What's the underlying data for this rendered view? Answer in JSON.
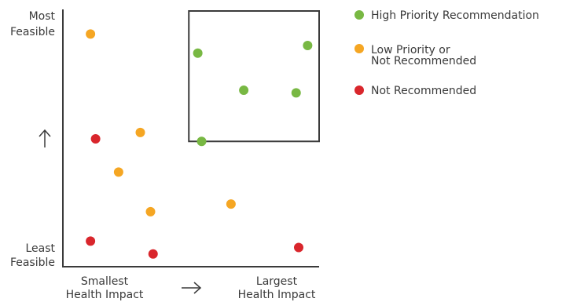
{
  "chart_data": {
    "type": "scatter",
    "title": "",
    "x_low_label": [
      "Smallest",
      "Health Impact"
    ],
    "x_high_label": [
      "Largest",
      "Health Impact"
    ],
    "y_high_label": [
      "Most",
      "Feasible"
    ],
    "y_low_label": [
      "Least",
      "Feasible"
    ],
    "xlim": [
      0,
      100
    ],
    "ylim": [
      0,
      100
    ],
    "highlight_box": {
      "x": [
        49,
        100
      ],
      "y": [
        49,
        100
      ]
    },
    "series": [
      {
        "name": "High Priority Recommendation",
        "color": "#78b843",
        "points": [
          {
            "x": 52.5,
            "y": 83.5
          },
          {
            "x": 95.5,
            "y": 86.5
          },
          {
            "x": 70.5,
            "y": 69
          },
          {
            "x": 91,
            "y": 68
          },
          {
            "x": 54,
            "y": 49
          }
        ]
      },
      {
        "name": "Low Priority or Not Recommended",
        "color": "#f5a623",
        "points": [
          {
            "x": 10.5,
            "y": 91
          },
          {
            "x": 30,
            "y": 52.5
          },
          {
            "x": 21.5,
            "y": 37
          },
          {
            "x": 34,
            "y": 21.5
          },
          {
            "x": 65.5,
            "y": 24.5
          }
        ]
      },
      {
        "name": "Not Recommended",
        "color": "#d9262c",
        "points": [
          {
            "x": 12.5,
            "y": 50
          },
          {
            "x": 10.5,
            "y": 10
          },
          {
            "x": 35,
            "y": 5
          },
          {
            "x": 92,
            "y": 7.5
          }
        ]
      }
    ],
    "legend": {
      "position": "top-right"
    }
  }
}
